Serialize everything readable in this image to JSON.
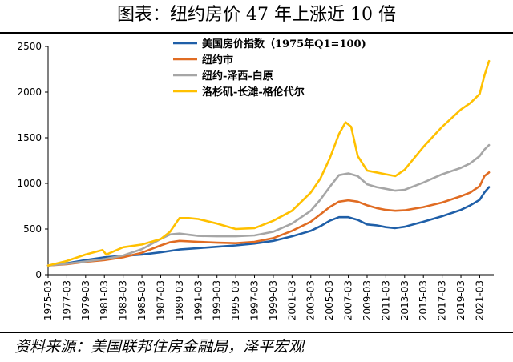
{
  "header": {
    "title": "图表：纽约房价 47 年上涨近 10 倍"
  },
  "footer": {
    "source": "资料来源：美国联邦住房金融局，泽平宏观"
  },
  "chart_data": {
    "type": "line",
    "title": "图表：纽约房价 47 年上涨近 10 倍",
    "xlabel": "",
    "ylabel": "",
    "ylim": [
      0,
      2500
    ],
    "yticks": [
      0,
      500,
      1000,
      1500,
      2000,
      2500
    ],
    "xlim": [
      1975.0,
      2022.5
    ],
    "xtick_labels": [
      "1975-03",
      "1977-03",
      "1979-03",
      "1981-03",
      "1983-03",
      "1985-03",
      "1987-03",
      "1989-03",
      "1991-03",
      "1993-03",
      "1995-03",
      "1997-03",
      "1999-03",
      "2001-03",
      "2003-03",
      "2005-03",
      "2007-03",
      "2009-03",
      "2011-03",
      "2013-03",
      "2015-03",
      "2017-03",
      "2019-03",
      "2021-03"
    ],
    "grid": false,
    "legend_position": "top-center",
    "series": [
      {
        "name": "美国房价指数（1975年Q1=100)",
        "color": "#1f5fa8",
        "x": [
          1975.0,
          1977,
          1979,
          1981,
          1983,
          1985,
          1987,
          1989,
          1991,
          1993,
          1995,
          1997,
          1999,
          2001,
          2003,
          2004,
          2005,
          2006,
          2007,
          2008,
          2009,
          2010,
          2011,
          2012,
          2013,
          2015,
          2017,
          2019,
          2020,
          2021,
          2021.5,
          2022
        ],
        "y": [
          100,
          125,
          160,
          190,
          205,
          220,
          245,
          275,
          290,
          305,
          320,
          340,
          370,
          420,
          480,
          530,
          590,
          630,
          630,
          600,
          550,
          540,
          520,
          510,
          525,
          580,
          640,
          710,
          760,
          820,
          900,
          960
        ]
      },
      {
        "name": "纽约市",
        "color": "#e06c23",
        "x": [
          1975.0,
          1977,
          1979,
          1981,
          1983,
          1985,
          1987,
          1988,
          1989,
          1991,
          1993,
          1995,
          1997,
          1999,
          2001,
          2003,
          2004,
          2005,
          2006,
          2007,
          2008,
          2009,
          2010,
          2011,
          2012,
          2013,
          2015,
          2017,
          2019,
          2020,
          2021,
          2021.5,
          2022
        ],
        "y": [
          100,
          115,
          140,
          160,
          190,
          240,
          320,
          355,
          370,
          360,
          350,
          345,
          360,
          400,
          480,
          580,
          660,
          740,
          800,
          815,
          800,
          760,
          730,
          710,
          700,
          705,
          740,
          790,
          860,
          900,
          970,
          1080,
          1120
        ]
      },
      {
        "name": "纽约-泽西-白原",
        "color": "#a6a6a6",
        "x": [
          1975.0,
          1977,
          1979,
          1981,
          1983,
          1985,
          1987,
          1988,
          1989,
          1991,
          1993,
          1995,
          1997,
          1999,
          2001,
          2003,
          2004,
          2005,
          2006,
          2007,
          2008,
          2009,
          2010,
          2011,
          2012,
          2013,
          2015,
          2017,
          2019,
          2020,
          2021,
          2021.5,
          2022
        ],
        "y": [
          100,
          120,
          145,
          170,
          210,
          280,
          390,
          440,
          450,
          425,
          420,
          420,
          430,
          470,
          560,
          700,
          820,
          960,
          1090,
          1110,
          1080,
          990,
          960,
          940,
          920,
          930,
          1010,
          1100,
          1170,
          1220,
          1300,
          1370,
          1420
        ]
      },
      {
        "name": "洛杉矶-长滩-格伦代尔",
        "color": "#ffc000",
        "x": [
          1975.0,
          1977,
          1979,
          1980.8,
          1981.2,
          1983,
          1985,
          1987,
          1988,
          1989,
          1990,
          1991,
          1993,
          1995,
          1997,
          1999,
          2001,
          2003,
          2004,
          2005,
          2006,
          2006.7,
          2007.3,
          2008,
          2009,
          2010,
          2011,
          2012,
          2013,
          2015,
          2017,
          2019,
          2020,
          2021,
          2021.5,
          2022
        ],
        "y": [
          100,
          150,
          220,
          270,
          220,
          300,
          330,
          390,
          470,
          620,
          620,
          610,
          560,
          500,
          510,
          590,
          700,
          900,
          1050,
          1270,
          1540,
          1670,
          1620,
          1300,
          1140,
          1120,
          1100,
          1080,
          1150,
          1400,
          1620,
          1810,
          1880,
          1980,
          2180,
          2340
        ]
      }
    ]
  }
}
